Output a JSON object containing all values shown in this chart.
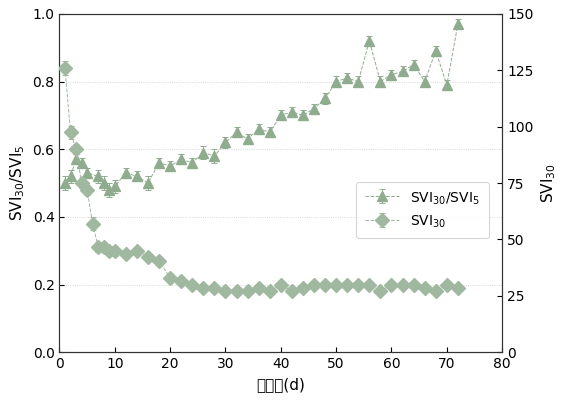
{
  "xlabel": "时　间(d)",
  "ylabel_left": "SVI$_{30}$/SVI$_5$",
  "ylabel_right": "SVI$_{30}$",
  "xlim": [
    0,
    80
  ],
  "ylim_left": [
    0.0,
    1.0
  ],
  "ylim_right": [
    0,
    150
  ],
  "yticks_left": [
    0.0,
    0.2,
    0.4,
    0.6,
    0.8,
    1.0
  ],
  "yticks_right": [
    0,
    25,
    50,
    75,
    100,
    125,
    150
  ],
  "xticks": [
    0,
    10,
    20,
    30,
    40,
    50,
    60,
    70,
    80
  ],
  "triangle_series": {
    "x": [
      1,
      2,
      3,
      4,
      5,
      7,
      8,
      9,
      10,
      12,
      14,
      16,
      18,
      20,
      22,
      24,
      26,
      28,
      30,
      32,
      34,
      36,
      38,
      40,
      42,
      44,
      46,
      48,
      50,
      52,
      54,
      56,
      58,
      60,
      62,
      64,
      66,
      68,
      70,
      72
    ],
    "y": [
      0.5,
      0.52,
      0.57,
      0.56,
      0.53,
      0.52,
      0.5,
      0.48,
      0.49,
      0.53,
      0.52,
      0.5,
      0.56,
      0.55,
      0.57,
      0.56,
      0.59,
      0.58,
      0.62,
      0.65,
      0.63,
      0.66,
      0.65,
      0.7,
      0.71,
      0.7,
      0.72,
      0.75,
      0.8,
      0.81,
      0.8,
      0.92,
      0.8,
      0.82,
      0.83,
      0.85,
      0.8,
      0.89,
      0.79,
      0.97
    ],
    "yerr": [
      0.02,
      0.02,
      0.015,
      0.015,
      0.015,
      0.02,
      0.02,
      0.02,
      0.02,
      0.015,
      0.015,
      0.02,
      0.015,
      0.015,
      0.015,
      0.015,
      0.02,
      0.02,
      0.015,
      0.015,
      0.015,
      0.015,
      0.015,
      0.015,
      0.015,
      0.015,
      0.015,
      0.015,
      0.015,
      0.015,
      0.015,
      0.015,
      0.015,
      0.015,
      0.015,
      0.015,
      0.015,
      0.015,
      0.015,
      0.015
    ],
    "label": "SVI$_{30}$/SVI$_5$",
    "marker": "^",
    "color": "#8fac8f"
  },
  "diamond_series": {
    "x": [
      1,
      2,
      3,
      4,
      5,
      6,
      7,
      8,
      9,
      10,
      12,
      14,
      16,
      18,
      20,
      22,
      24,
      26,
      28,
      30,
      32,
      34,
      36,
      38,
      40,
      42,
      44,
      46,
      48,
      50,
      52,
      54,
      56,
      58,
      60,
      62,
      64,
      66,
      68,
      70,
      72
    ],
    "y": [
      0.84,
      0.65,
      0.6,
      0.5,
      0.48,
      0.38,
      0.31,
      0.31,
      0.3,
      0.3,
      0.29,
      0.3,
      0.28,
      0.27,
      0.22,
      0.21,
      0.2,
      0.19,
      0.19,
      0.18,
      0.18,
      0.18,
      0.19,
      0.18,
      0.2,
      0.18,
      0.19,
      0.2,
      0.2,
      0.2,
      0.2,
      0.2,
      0.2,
      0.18,
      0.2,
      0.2,
      0.2,
      0.19,
      0.18,
      0.2,
      0.19
    ],
    "yerr": [
      0.02,
      0.02,
      0.015,
      0.015,
      0.015,
      0.02,
      0.015,
      0.015,
      0.015,
      0.015,
      0.01,
      0.01,
      0.01,
      0.01,
      0.01,
      0.01,
      0.01,
      0.01,
      0.01,
      0.01,
      0.01,
      0.01,
      0.01,
      0.01,
      0.01,
      0.01,
      0.01,
      0.01,
      0.01,
      0.01,
      0.01,
      0.01,
      0.01,
      0.01,
      0.01,
      0.01,
      0.01,
      0.01,
      0.01,
      0.01,
      0.01
    ],
    "label": "SVI$_{30}$",
    "marker": "D",
    "color": "#a0b8a0"
  },
  "line_color": "#b8c8b8",
  "bg_color": "#ffffff",
  "font_size": 11,
  "tick_fontsize": 10
}
